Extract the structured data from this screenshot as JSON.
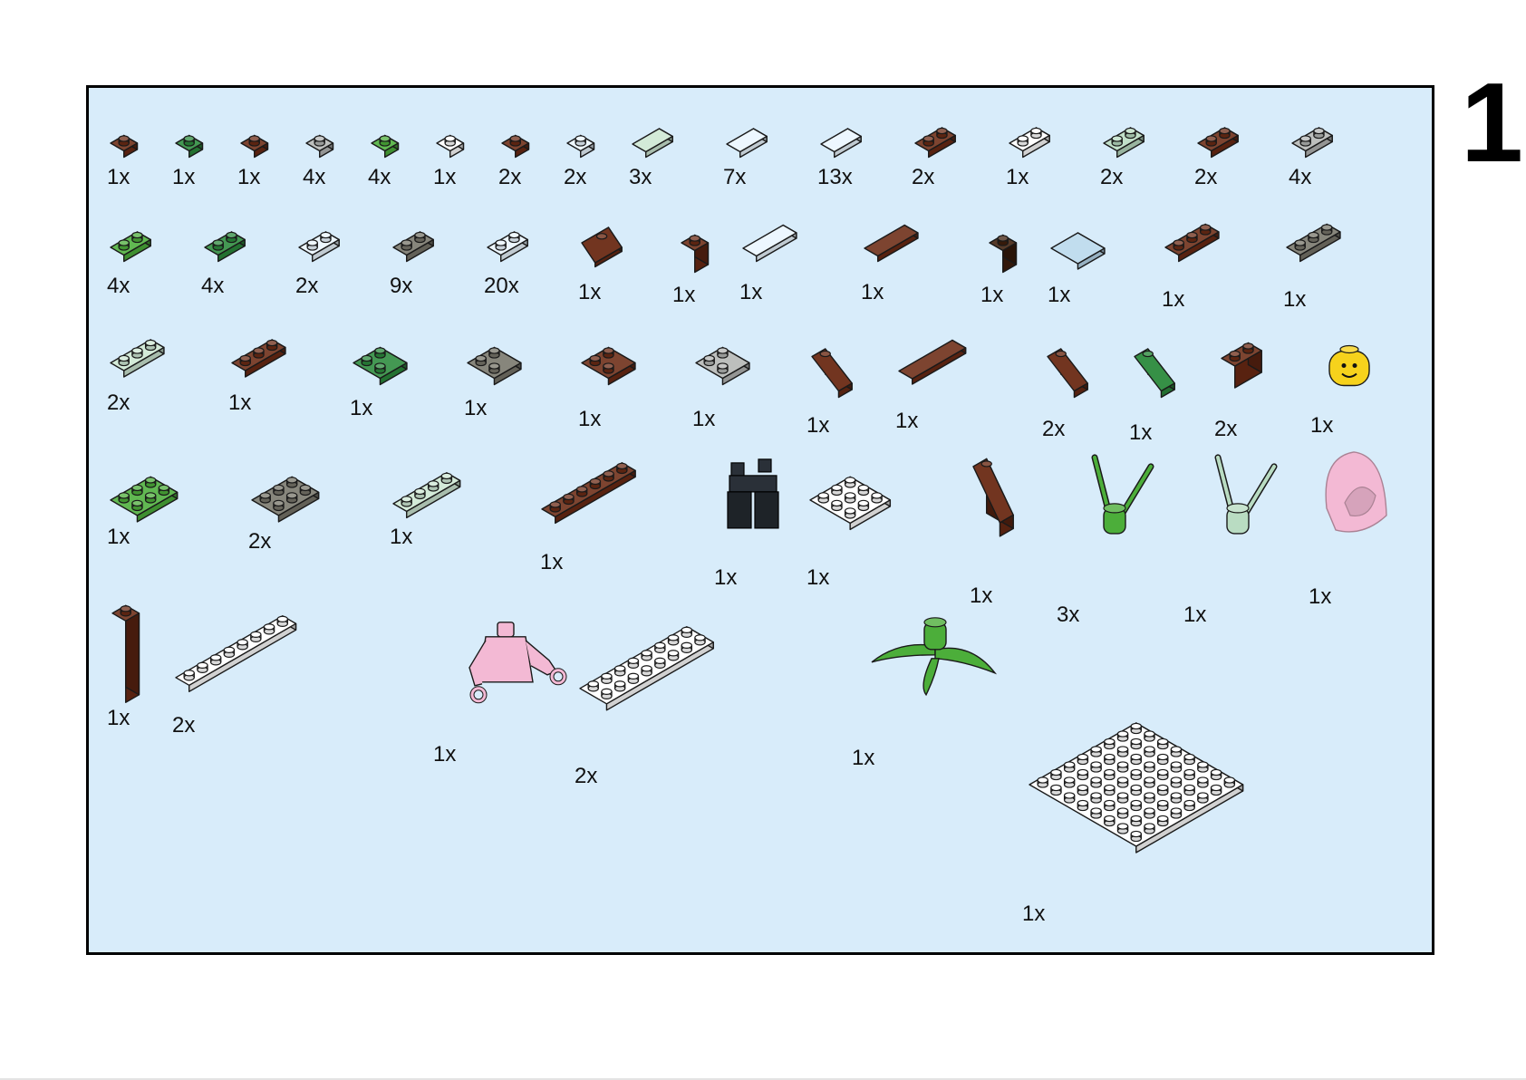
{
  "page": {
    "step_number": "1"
  },
  "colors": {
    "panel_bg": "#d8ecfa",
    "reddish_brown": "#6b2a14",
    "dark_brown": "#3f1f0c",
    "green": "#4cae3a",
    "dark_green": "#2b8a3c",
    "light_gray": "#b4b6b4",
    "dark_tan_gray": "#77756a",
    "white": "#ffffff",
    "trans_clear": "#eaf6ff",
    "trans_green": "#cde7d3",
    "sand_green": "#b9dcc2",
    "trans_light_blue": "#b8d8ec",
    "yellow": "#f6d21c",
    "bright_pink": "#f3b9d4",
    "black": "#1e2328"
  },
  "parts_list": {
    "row1": [
      {
        "qty": "1x",
        "part": "plate 1x1",
        "color": "reddish_brown"
      },
      {
        "qty": "1x",
        "part": "plate 1x1",
        "color": "dark_green"
      },
      {
        "qty": "1x",
        "part": "plate 1x1",
        "color": "reddish_brown"
      },
      {
        "qty": "4x",
        "part": "plate 1x1",
        "color": "light_gray"
      },
      {
        "qty": "4x",
        "part": "plate 1x1",
        "color": "green"
      },
      {
        "qty": "1x",
        "part": "plate 1x1",
        "color": "white"
      },
      {
        "qty": "2x",
        "part": "plate 1x1",
        "color": "reddish_brown"
      },
      {
        "qty": "2x",
        "part": "plate 1x1",
        "color": "trans_clear"
      },
      {
        "qty": "3x",
        "part": "tile 1x2",
        "color": "trans_green"
      },
      {
        "qty": "7x",
        "part": "tile 1x2",
        "color": "trans_clear"
      },
      {
        "qty": "13x",
        "part": "tile 1x2",
        "color": "trans_clear"
      },
      {
        "qty": "2x",
        "part": "plate 1x2",
        "color": "reddish_brown"
      },
      {
        "qty": "1x",
        "part": "plate 1x2",
        "color": "white"
      },
      {
        "qty": "2x",
        "part": "plate 1x2",
        "color": "sand_green"
      },
      {
        "qty": "2x",
        "part": "plate 1x2",
        "color": "reddish_brown"
      },
      {
        "qty": "4x",
        "part": "plate 1x2",
        "color": "light_gray"
      }
    ],
    "row2": [
      {
        "qty": "4x",
        "part": "plate 1x2",
        "color": "green"
      },
      {
        "qty": "4x",
        "part": "plate 1x2",
        "color": "dark_green"
      },
      {
        "qty": "2x",
        "part": "plate 1x2",
        "color": "trans_clear"
      },
      {
        "qty": "9x",
        "part": "plate 1x2",
        "color": "dark_tan_gray"
      },
      {
        "qty": "20x",
        "part": "plate 1x2",
        "color": "trans_clear"
      },
      {
        "qty": "1x",
        "part": "slope 1x2",
        "color": "reddish_brown"
      },
      {
        "qty": "1x",
        "part": "brick 1x1",
        "color": "reddish_brown"
      },
      {
        "qty": "1x",
        "part": "tile 1x3",
        "color": "trans_clear"
      },
      {
        "qty": "1x",
        "part": "tile 1x3",
        "color": "reddish_brown"
      },
      {
        "qty": "1x",
        "part": "brick 1x1",
        "color": "dark_brown"
      },
      {
        "qty": "1x",
        "part": "tile corner",
        "color": "trans_light_blue"
      },
      {
        "qty": "1x",
        "part": "plate 1x3",
        "color": "reddish_brown"
      },
      {
        "qty": "1x",
        "part": "plate 1x3",
        "color": "dark_tan_gray"
      }
    ],
    "row3": [
      {
        "qty": "2x",
        "part": "plate 1x3",
        "color": "trans_green"
      },
      {
        "qty": "1x",
        "part": "plate 1x3",
        "color": "reddish_brown"
      },
      {
        "qty": "1x",
        "part": "plate corner",
        "color": "dark_green"
      },
      {
        "qty": "1x",
        "part": "plate corner",
        "color": "dark_tan_gray"
      },
      {
        "qty": "1x",
        "part": "plate corner",
        "color": "reddish_brown"
      },
      {
        "qty": "1x",
        "part": "plate corner",
        "color": "light_gray"
      },
      {
        "qty": "1x",
        "part": "slope 2x1",
        "color": "reddish_brown"
      },
      {
        "qty": "1x",
        "part": "tile 1x4",
        "color": "reddish_brown"
      },
      {
        "qty": "2x",
        "part": "slope 2x1",
        "color": "reddish_brown"
      },
      {
        "qty": "1x",
        "part": "slope 2x1",
        "color": "dark_green"
      },
      {
        "qty": "2x",
        "part": "brick 1x2",
        "color": "reddish_brown"
      },
      {
        "qty": "1x",
        "part": "minifig head",
        "color": "yellow"
      }
    ],
    "row4": [
      {
        "qty": "1x",
        "part": "plate 2x3",
        "color": "green"
      },
      {
        "qty": "2x",
        "part": "plate 2x3",
        "color": "dark_tan_gray"
      },
      {
        "qty": "1x",
        "part": "plate 1x4",
        "color": "trans_green"
      },
      {
        "qty": "1x",
        "part": "plate 1x6",
        "color": "reddish_brown"
      },
      {
        "qty": "1x",
        "part": "minifig legs short",
        "color": "black"
      },
      {
        "qty": "1x",
        "part": "plate 3x3",
        "color": "white"
      },
      {
        "qty": "1x",
        "part": "slope 3x1 tall",
        "color": "reddish_brown"
      },
      {
        "qty": "3x",
        "part": "plant stem",
        "color": "green"
      },
      {
        "qty": "1x",
        "part": "plant stem",
        "color": "sand_green"
      },
      {
        "qty": "1x",
        "part": "hood",
        "color": "bright_pink"
      }
    ],
    "row5": [
      {
        "qty": "1x",
        "part": "brick 1x1x3",
        "color": "reddish_brown"
      },
      {
        "qty": "2x",
        "part": "plate 1x8",
        "color": "white"
      },
      {
        "qty": "1x",
        "part": "minifig torso",
        "color": "bright_pink"
      },
      {
        "qty": "2x",
        "part": "plate 2x8",
        "color": "white"
      },
      {
        "qty": "1x",
        "part": "plant leaves",
        "color": "green"
      },
      {
        "qty": "1x",
        "part": "plate 8x8",
        "color": "white"
      }
    ]
  }
}
